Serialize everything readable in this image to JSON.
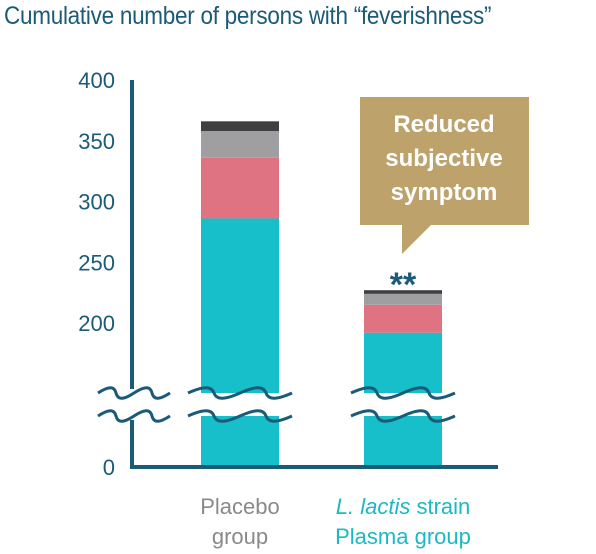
{
  "chart_data": {
    "type": "bar",
    "stacked": true,
    "title": "Cumulative number of persons with “feverishness”",
    "categories": [
      {
        "lines": [
          "Placebo",
          "group"
        ],
        "italic_prefix": "",
        "color": "#8a8a8a"
      },
      {
        "lines": [
          "strain",
          "Plasma group"
        ],
        "italic_prefix": "L. lactis",
        "color": "#1bb9c4"
      }
    ],
    "segment_colors": [
      "#16bfc9",
      "#df7382",
      "#9f9fa1",
      "#3f3f41"
    ],
    "stacks": [
      [
        286,
        336,
        358,
        366
      ],
      [
        192,
        215,
        224,
        227
      ]
    ],
    "yticks": [
      {
        "value": 400,
        "label": "400"
      },
      {
        "value": 350,
        "label": "350"
      },
      {
        "value": 300,
        "label": "300"
      },
      {
        "value": 250,
        "label": "250"
      },
      {
        "value": 200,
        "label": "200"
      },
      {
        "value": 0,
        "label": "0"
      }
    ],
    "axis_break": true,
    "significance": "**",
    "callout": {
      "lines": [
        "Reduced",
        "subjective",
        "symptom"
      ],
      "color": "#bda26c"
    },
    "axis_color": "#1b5b78"
  }
}
